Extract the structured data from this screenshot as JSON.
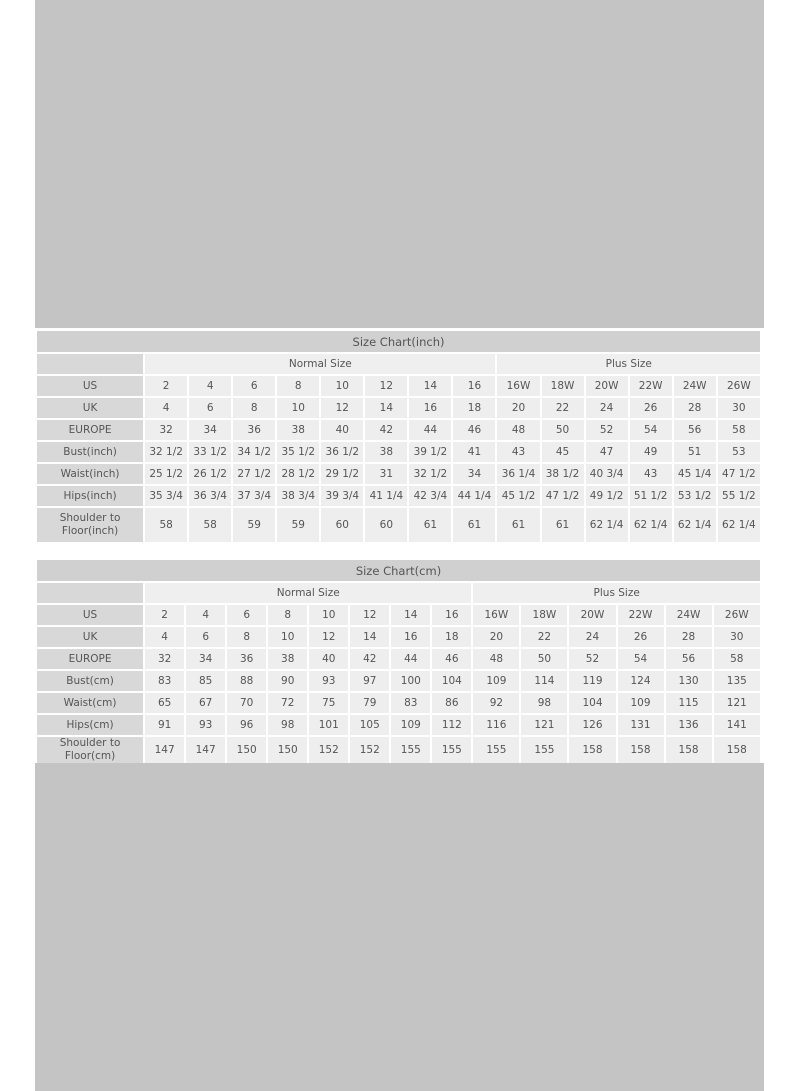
{
  "colors": {
    "background": "#c4c4c4",
    "title_cell": "#d0d0d0",
    "label_cell": "#d8d8d8",
    "data_cell": "#eeeeee",
    "text": "#555555"
  },
  "inch": {
    "title": "Size Chart(inch)",
    "normal_label": "Normal Size",
    "plus_label": "Plus Size",
    "rows": [
      {
        "label": "US",
        "values": [
          "2",
          "4",
          "6",
          "8",
          "10",
          "12",
          "14",
          "16",
          "16W",
          "18W",
          "20W",
          "22W",
          "24W",
          "26W"
        ]
      },
      {
        "label": "UK",
        "values": [
          "4",
          "6",
          "8",
          "10",
          "12",
          "14",
          "16",
          "18",
          "20",
          "22",
          "24",
          "26",
          "28",
          "30"
        ]
      },
      {
        "label": "EUROPE",
        "values": [
          "32",
          "34",
          "36",
          "38",
          "40",
          "42",
          "44",
          "46",
          "48",
          "50",
          "52",
          "54",
          "56",
          "58"
        ]
      },
      {
        "label": "Bust(inch)",
        "values": [
          "32 1/2",
          "33 1/2",
          "34 1/2",
          "35 1/2",
          "36 1/2",
          "38",
          "39 1/2",
          "41",
          "43",
          "45",
          "47",
          "49",
          "51",
          "53"
        ]
      },
      {
        "label": "Waist(inch)",
        "values": [
          "25 1/2",
          "26 1/2",
          "27 1/2",
          "28 1/2",
          "29 1/2",
          "31",
          "32 1/2",
          "34",
          "36 1/4",
          "38 1/2",
          "40 3/4",
          "43",
          "45 1/4",
          "47 1/2"
        ]
      },
      {
        "label": "Hips(inch)",
        "values": [
          "35 3/4",
          "36 3/4",
          "37 3/4",
          "38 3/4",
          "39 3/4",
          "41 1/4",
          "42 3/4",
          "44 1/4",
          "45 1/2",
          "47 1/2",
          "49 1/2",
          "51 1/2",
          "53 1/2",
          "55 1/2"
        ]
      },
      {
        "label": "Shoulder to Floor(inch)",
        "values": [
          "58",
          "58",
          "59",
          "59",
          "60",
          "60",
          "61",
          "61",
          "61",
          "61",
          "62 1/4",
          "62 1/4",
          "62 1/4",
          "62 1/4"
        ]
      }
    ]
  },
  "cm": {
    "title": "Size Chart(cm)",
    "normal_label": "Normal Size",
    "plus_label": "Plus Size",
    "rows": [
      {
        "label": "US",
        "values": [
          "2",
          "4",
          "6",
          "8",
          "10",
          "12",
          "14",
          "16",
          "16W",
          "18W",
          "20W",
          "22W",
          "24W",
          "26W"
        ]
      },
      {
        "label": "UK",
        "values": [
          "4",
          "6",
          "8",
          "10",
          "12",
          "14",
          "16",
          "18",
          "20",
          "22",
          "24",
          "26",
          "28",
          "30"
        ]
      },
      {
        "label": "EUROPE",
        "values": [
          "32",
          "34",
          "36",
          "38",
          "40",
          "42",
          "44",
          "46",
          "48",
          "50",
          "52",
          "54",
          "56",
          "58"
        ]
      },
      {
        "label": "Bust(cm)",
        "values": [
          "83",
          "85",
          "88",
          "90",
          "93",
          "97",
          "100",
          "104",
          "109",
          "114",
          "119",
          "124",
          "130",
          "135"
        ]
      },
      {
        "label": "Waist(cm)",
        "values": [
          "65",
          "67",
          "70",
          "72",
          "75",
          "79",
          "83",
          "86",
          "92",
          "98",
          "104",
          "109",
          "115",
          "121"
        ]
      },
      {
        "label": "Hips(cm)",
        "values": [
          "91",
          "93",
          "96",
          "98",
          "101",
          "105",
          "109",
          "112",
          "116",
          "121",
          "126",
          "131",
          "136",
          "141"
        ]
      },
      {
        "label": "Shoulder to Floor(cm)",
        "values": [
          "147",
          "147",
          "150",
          "150",
          "152",
          "152",
          "155",
          "155",
          "155",
          "155",
          "158",
          "158",
          "158",
          "158"
        ]
      }
    ]
  }
}
